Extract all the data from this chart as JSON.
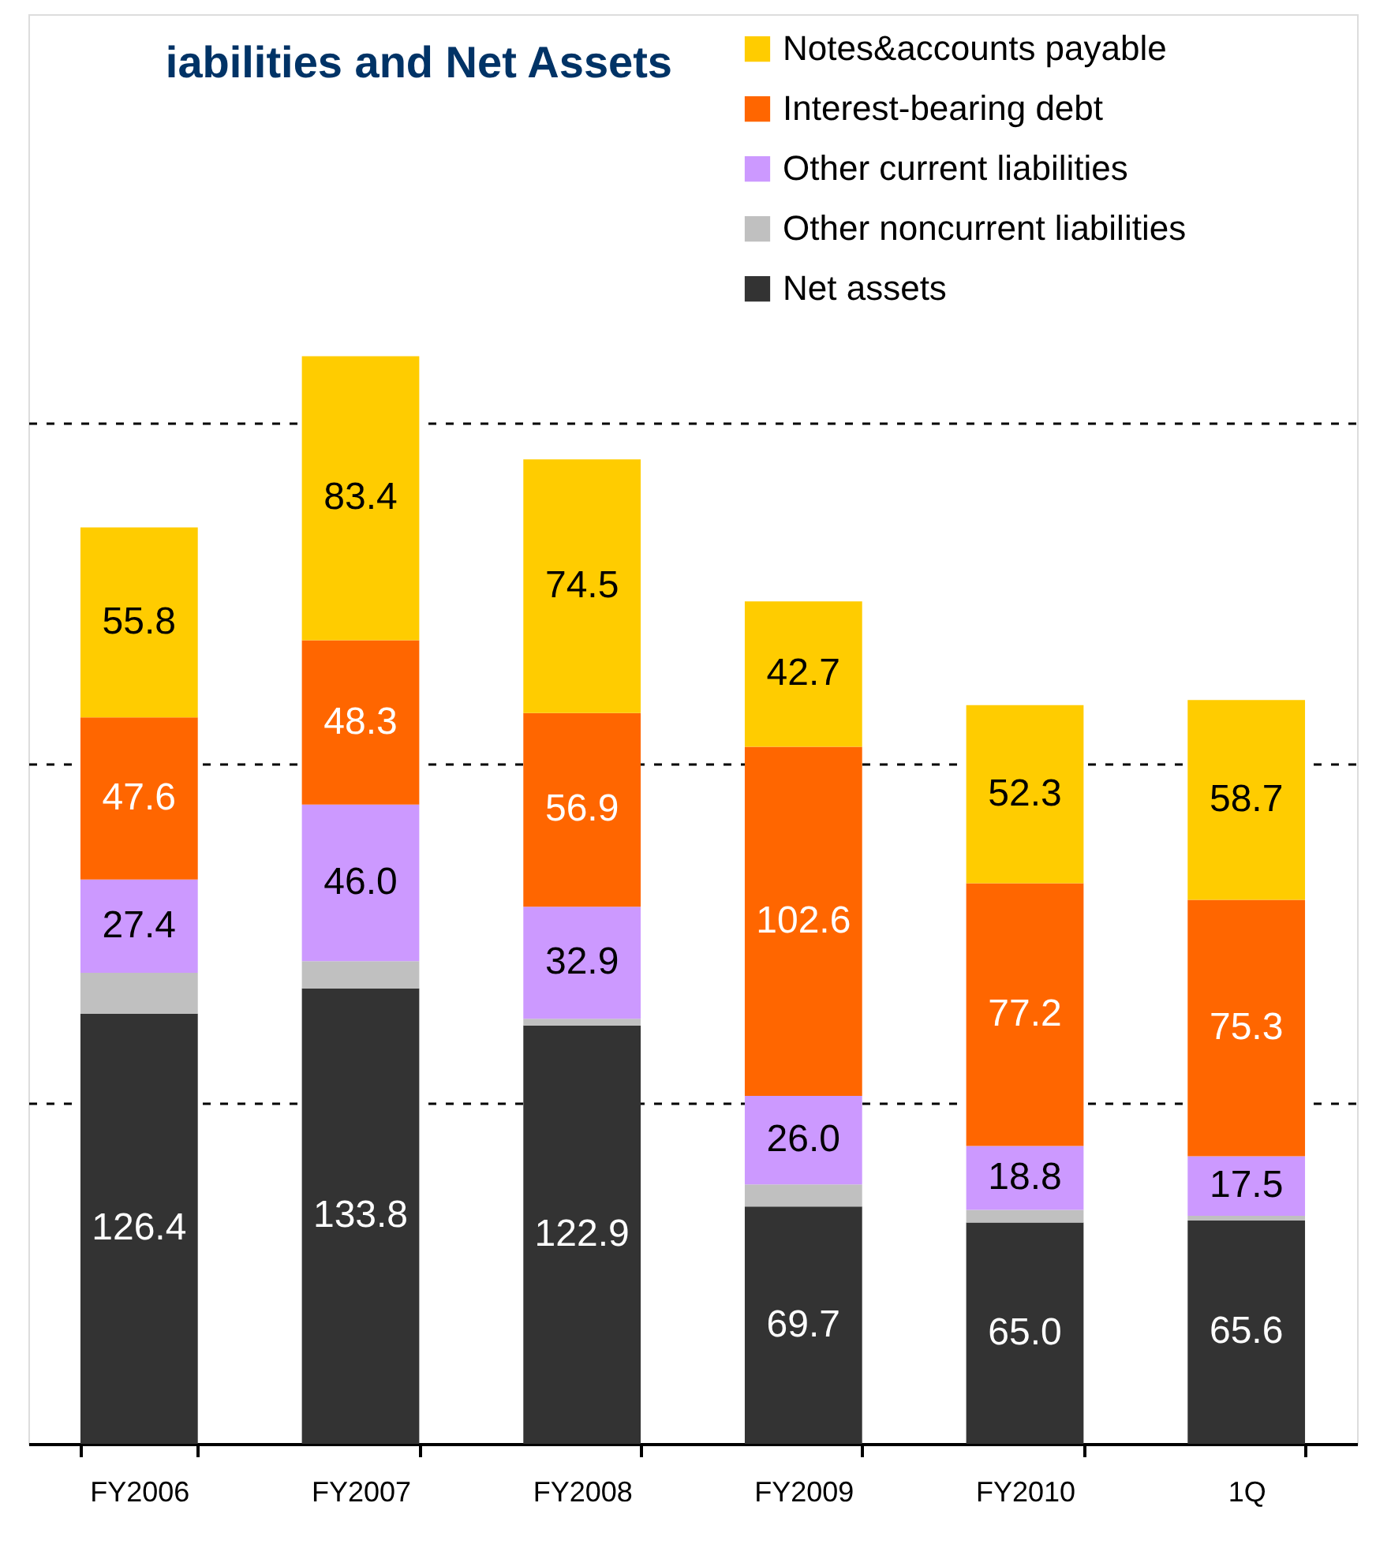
{
  "chart_data": {
    "type": "bar",
    "title": "iabilities and Net Assets",
    "stacked": true,
    "categories": [
      "FY2006",
      "FY2007",
      "FY2008",
      "FY2009",
      "FY2010",
      "1Q"
    ],
    "series": [
      {
        "name": "Net assets",
        "color": "#333333",
        "values": [
          126.4,
          133.8,
          122.9,
          69.7,
          65.0,
          65.6
        ],
        "value_labels": [
          "126.4",
          "133.8",
          "122.9",
          "69.7",
          "65.0",
          "65.6"
        ]
      },
      {
        "name": "Other noncurrent liabilities",
        "color": "#c0c0c0",
        "values": [
          12,
          8,
          2,
          6.5,
          3.7,
          1.4
        ]
      },
      {
        "name": "Other current liabilities",
        "color": "#cc99ff",
        "values": [
          27.4,
          46.0,
          32.9,
          26.0,
          18.8,
          17.5
        ],
        "value_labels": [
          "27.4",
          "46.0",
          "32.9",
          "26.0",
          "18.8",
          "17.5"
        ]
      },
      {
        "name": "Interest-bearing debt",
        "color": "#ff6600",
        "values": [
          47.6,
          48.3,
          56.9,
          102.6,
          77.2,
          75.3
        ],
        "value_labels": [
          "47.6",
          "48.3",
          "56.9",
          "102.6",
          "77.2",
          "75.3"
        ]
      },
      {
        "name": "Notes&accounts payable",
        "color": "#ffcc00",
        "values": [
          55.8,
          83.4,
          74.5,
          42.7,
          52.3,
          58.7
        ],
        "value_labels": [
          "55.8",
          "83.4",
          "74.5",
          "42.7",
          "52.3",
          "58.7"
        ]
      }
    ],
    "ylim": [
      0,
      420
    ],
    "yticks": [
      {
        "value": 100,
        "label": null
      },
      {
        "value": 200,
        "label": null
      },
      {
        "value": 300,
        "label": null
      }
    ],
    "tick_labels": "x",
    "grid": "y",
    "legend": "top right"
  }
}
